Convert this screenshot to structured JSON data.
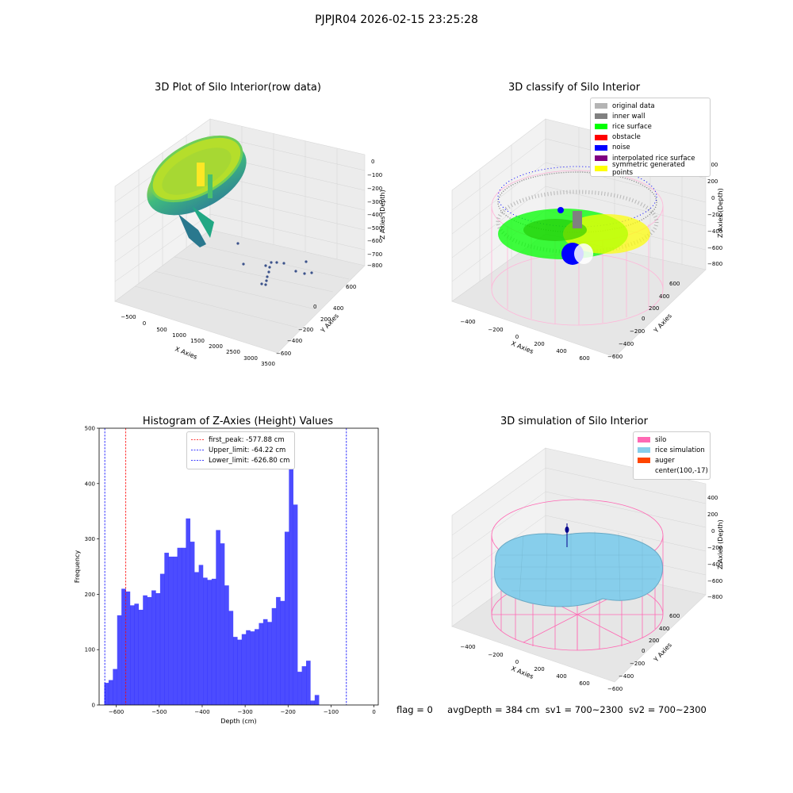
{
  "figure": {
    "suptitle": "PJPJR04 2026-02-15 23:25:28",
    "status": {
      "flag": "flag = 0",
      "avg_depth": "avgDepth = 384 cm",
      "sv1": "sv1 = 700~2300",
      "sv2": "sv2 = 700~2300"
    }
  },
  "panels": {
    "raw": {
      "title": "3D Plot of Silo Interior(row data)",
      "xlabel": "X Axies",
      "ylabel": "Y Axies",
      "zlabel": "Z Axies (Depth)",
      "xticks": [
        "−500",
        "0",
        "500",
        "1000",
        "1500",
        "2000",
        "2500",
        "3000",
        "3500"
      ],
      "yticks": [
        "600",
        "400",
        "200",
        "0",
        "−200",
        "−400",
        "−600"
      ],
      "zticks": [
        "0",
        "−100",
        "−200",
        "−300",
        "−400",
        "−500",
        "−600",
        "−700",
        "−800"
      ]
    },
    "classify": {
      "title": "3D classify of Silo Interior",
      "xlabel": "X Axies",
      "ylabel": "Y Axies",
      "zlabel": "Z Axies (Depth)",
      "xticks": [
        "−400",
        "−200",
        "0",
        "200",
        "400",
        "600"
      ],
      "yticks": [
        "600",
        "400",
        "200",
        "0",
        "−200",
        "−400",
        "−600"
      ],
      "zticks": [
        "400",
        "200",
        "0",
        "−200",
        "−400",
        "−600",
        "−800"
      ],
      "legend": [
        {
          "label": "original data",
          "color": "#b4b4b4"
        },
        {
          "label": "inner wall",
          "color": "#808080"
        },
        {
          "label": "rice surface",
          "color": "#00ff00"
        },
        {
          "label": "obstacle",
          "color": "#ff0000"
        },
        {
          "label": "noise",
          "color": "#0000ff"
        },
        {
          "label": "interpolated rice surface",
          "color": "#800080"
        },
        {
          "label": "symmetric generated points",
          "color": "#ffff00"
        }
      ]
    },
    "simulation": {
      "title": "3D simulation of Silo Interior",
      "xlabel": "X Axies",
      "ylabel": "Y Axies",
      "zlabel": "Z Axies (Depth)",
      "xticks": [
        "−400",
        "−200",
        "0",
        "200",
        "400",
        "600"
      ],
      "yticks": [
        "600",
        "400",
        "200",
        "0",
        "−200",
        "−400",
        "−600"
      ],
      "zticks": [
        "400",
        "200",
        "0",
        "−200",
        "−400",
        "−600",
        "−800"
      ],
      "legend": [
        {
          "label": "silo",
          "color": "#ff69b4"
        },
        {
          "label": "rice simulation",
          "color": "#87ceeb"
        },
        {
          "label": "auger",
          "color": "#ff4500"
        },
        {
          "label": "center(100,-17)",
          "color": "#ffffff"
        }
      ]
    }
  },
  "chart_data": {
    "type": "bar",
    "title": "Histogram of Z-Axies (Height) Values",
    "xlabel": "Depth (cm)",
    "ylabel": "Frequency",
    "xlim": [
      -640,
      10
    ],
    "ylim": [
      0,
      500
    ],
    "xticks": [
      -600,
      -500,
      -400,
      -300,
      -200,
      -100,
      0
    ],
    "yticks": [
      0,
      100,
      200,
      300,
      400,
      500
    ],
    "bin_start": -628,
    "bin_width": 10,
    "values": [
      40,
      45,
      65,
      162,
      210,
      205,
      180,
      183,
      172,
      198,
      195,
      207,
      202,
      237,
      275,
      268,
      268,
      284,
      284,
      337,
      295,
      240,
      253,
      230,
      226,
      228,
      316,
      292,
      216,
      170,
      123,
      118,
      128,
      135,
      133,
      137,
      148,
      155,
      150,
      175,
      195,
      188,
      313,
      478,
      362,
      60,
      70,
      80,
      8,
      18
    ],
    "color": "#0000ff",
    "vlines": [
      {
        "name": "first_peak: -577.88 cm",
        "x": -577.88,
        "color": "#ff0000"
      },
      {
        "name": "Upper_limit: -64.22 cm",
        "x": -64.22,
        "color": "#0000ff"
      },
      {
        "name": "Lower_limit: -626.80 cm",
        "x": -626.8,
        "color": "#0000ff"
      }
    ],
    "legend_position": "upper center"
  }
}
